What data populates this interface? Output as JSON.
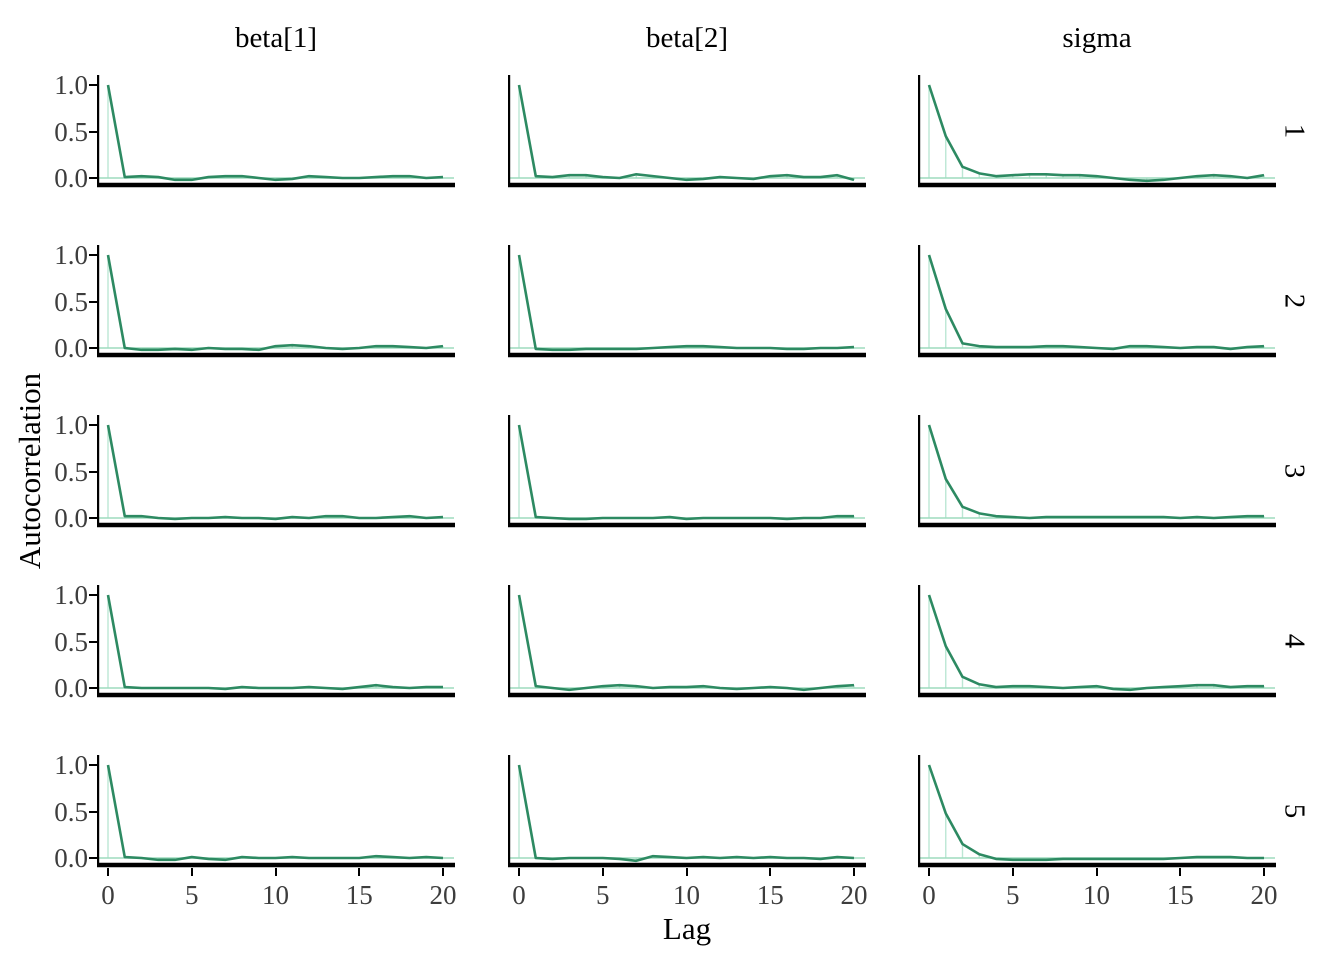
{
  "figure": {
    "y_axis_title": "Autocorrelation",
    "x_axis_title": "Lag",
    "column_titles": [
      "beta[1]",
      "beta[2]",
      "sigma"
    ],
    "row_labels": [
      "1",
      "2",
      "3",
      "4",
      "5"
    ],
    "y_tick_labels": [
      "1.0",
      "0.5",
      "0.0"
    ],
    "x_tick_labels": [
      "0",
      "5",
      "10",
      "15",
      "20"
    ],
    "colors": {
      "line": "#2d8a62",
      "lag_guide": "#bce7d4",
      "zero_line": "#9edcbe",
      "axis": "#000000",
      "tick_label": "#3d3d3d",
      "background": "#ffffff"
    }
  },
  "chart_data": {
    "type": "line",
    "title": "",
    "xlabel": "Lag",
    "ylabel": "Autocorrelation",
    "xlim": [
      0,
      20
    ],
    "ylim": [
      -0.07,
      1.05
    ],
    "x_ticks": [
      0,
      5,
      10,
      15,
      20
    ],
    "y_ticks": [
      1.0,
      0.5,
      0.0
    ],
    "grid": "off",
    "legend": "none",
    "facet_columns": [
      "beta[1]",
      "beta[2]",
      "sigma"
    ],
    "facet_rows": [
      "1",
      "2",
      "3",
      "4",
      "5"
    ],
    "lags": [
      0,
      1,
      2,
      3,
      4,
      5,
      6,
      7,
      8,
      9,
      10,
      11,
      12,
      13,
      14,
      15,
      16,
      17,
      18,
      19,
      20
    ],
    "series": [
      {
        "row": "1",
        "column": "beta[1]",
        "values": [
          1.0,
          0.01,
          0.02,
          0.01,
          -0.02,
          -0.02,
          0.01,
          0.02,
          0.02,
          0.0,
          -0.02,
          -0.01,
          0.02,
          0.01,
          0.0,
          0.0,
          0.01,
          0.02,
          0.02,
          0.0,
          0.01
        ]
      },
      {
        "row": "1",
        "column": "beta[2]",
        "values": [
          1.0,
          0.02,
          0.01,
          0.03,
          0.03,
          0.01,
          0.0,
          0.04,
          0.02,
          0.0,
          -0.02,
          -0.01,
          0.01,
          0.0,
          -0.01,
          0.02,
          0.03,
          0.01,
          0.01,
          0.03,
          -0.02
        ]
      },
      {
        "row": "1",
        "column": "sigma",
        "values": [
          1.0,
          0.45,
          0.12,
          0.05,
          0.02,
          0.03,
          0.04,
          0.04,
          0.03,
          0.03,
          0.02,
          0.0,
          -0.02,
          -0.03,
          -0.02,
          0.0,
          0.02,
          0.03,
          0.02,
          0.0,
          0.03
        ]
      },
      {
        "row": "2",
        "column": "beta[1]",
        "values": [
          1.0,
          0.0,
          -0.02,
          -0.02,
          -0.01,
          -0.02,
          0.0,
          -0.01,
          -0.01,
          -0.02,
          0.02,
          0.03,
          0.02,
          0.0,
          -0.01,
          0.0,
          0.02,
          0.02,
          0.01,
          0.0,
          0.02
        ]
      },
      {
        "row": "2",
        "column": "beta[2]",
        "values": [
          1.0,
          -0.01,
          -0.02,
          -0.02,
          -0.01,
          -0.01,
          -0.01,
          -0.01,
          0.0,
          0.01,
          0.02,
          0.02,
          0.01,
          0.0,
          0.0,
          0.0,
          -0.01,
          -0.01,
          0.0,
          0.0,
          0.01
        ]
      },
      {
        "row": "2",
        "column": "sigma",
        "values": [
          1.0,
          0.42,
          0.05,
          0.02,
          0.01,
          0.01,
          0.01,
          0.02,
          0.02,
          0.01,
          0.0,
          -0.01,
          0.02,
          0.02,
          0.01,
          0.0,
          0.01,
          0.01,
          -0.01,
          0.01,
          0.02
        ]
      },
      {
        "row": "3",
        "column": "beta[1]",
        "values": [
          1.0,
          0.02,
          0.02,
          0.0,
          -0.01,
          0.0,
          0.0,
          0.01,
          0.0,
          0.0,
          -0.01,
          0.01,
          0.0,
          0.02,
          0.02,
          0.0,
          0.0,
          0.01,
          0.02,
          0.0,
          0.01
        ]
      },
      {
        "row": "3",
        "column": "beta[2]",
        "values": [
          1.0,
          0.01,
          0.0,
          -0.01,
          -0.01,
          0.0,
          0.0,
          0.0,
          0.0,
          0.01,
          -0.01,
          0.0,
          0.0,
          0.0,
          0.0,
          0.0,
          -0.01,
          0.0,
          0.0,
          0.02,
          0.02
        ]
      },
      {
        "row": "3",
        "column": "sigma",
        "values": [
          1.0,
          0.42,
          0.12,
          0.05,
          0.02,
          0.01,
          0.0,
          0.01,
          0.01,
          0.01,
          0.01,
          0.01,
          0.01,
          0.01,
          0.01,
          0.0,
          0.01,
          0.0,
          0.01,
          0.02,
          0.02
        ]
      },
      {
        "row": "4",
        "column": "beta[1]",
        "values": [
          1.0,
          0.01,
          0.0,
          0.0,
          0.0,
          0.0,
          0.0,
          -0.01,
          0.01,
          0.0,
          0.0,
          0.0,
          0.01,
          0.0,
          -0.01,
          0.01,
          0.03,
          0.01,
          0.0,
          0.01,
          0.01
        ]
      },
      {
        "row": "4",
        "column": "beta[2]",
        "values": [
          1.0,
          0.02,
          0.0,
          -0.02,
          0.0,
          0.02,
          0.03,
          0.02,
          0.0,
          0.01,
          0.01,
          0.02,
          0.0,
          -0.01,
          0.0,
          0.01,
          0.0,
          -0.02,
          0.0,
          0.02,
          0.03
        ]
      },
      {
        "row": "4",
        "column": "sigma",
        "values": [
          1.0,
          0.45,
          0.12,
          0.04,
          0.01,
          0.02,
          0.02,
          0.01,
          0.0,
          0.01,
          0.02,
          -0.01,
          -0.02,
          0.0,
          0.01,
          0.02,
          0.03,
          0.03,
          0.01,
          0.02,
          0.02
        ]
      },
      {
        "row": "5",
        "column": "beta[1]",
        "values": [
          1.0,
          0.01,
          0.0,
          -0.02,
          -0.02,
          0.01,
          -0.01,
          -0.02,
          0.01,
          0.0,
          0.0,
          0.01,
          0.0,
          0.0,
          0.0,
          0.0,
          0.02,
          0.01,
          0.0,
          0.01,
          0.0
        ]
      },
      {
        "row": "5",
        "column": "beta[2]",
        "values": [
          1.0,
          0.0,
          -0.01,
          0.0,
          0.0,
          0.0,
          -0.01,
          -0.03,
          0.02,
          0.01,
          0.0,
          0.01,
          0.0,
          0.01,
          0.0,
          0.01,
          0.0,
          0.0,
          -0.01,
          0.01,
          0.0
        ]
      },
      {
        "row": "5",
        "column": "sigma",
        "values": [
          1.0,
          0.48,
          0.15,
          0.04,
          -0.01,
          -0.02,
          -0.02,
          -0.02,
          -0.01,
          -0.01,
          -0.01,
          -0.01,
          -0.01,
          -0.01,
          -0.01,
          0.0,
          0.01,
          0.01,
          0.01,
          0.0,
          0.0
        ]
      }
    ]
  }
}
